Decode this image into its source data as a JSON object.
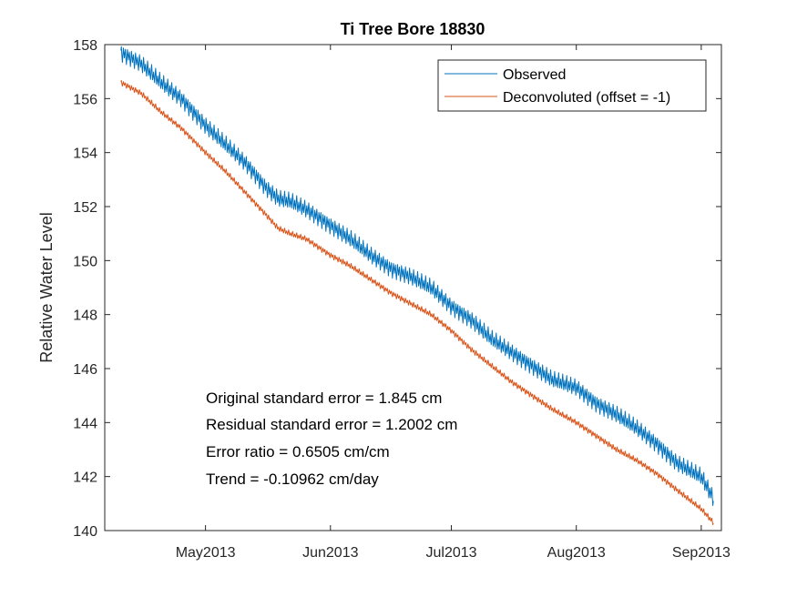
{
  "chart_data": {
    "type": "line",
    "title": "Ti Tree Bore 18830",
    "ylabel": "Relative Water Level",
    "xlabel": "",
    "ylim": [
      140,
      158
    ],
    "xlim": [
      "2013-04-06",
      "2013-09-06"
    ],
    "y_ticks": [
      140,
      142,
      144,
      146,
      148,
      150,
      152,
      154,
      156,
      158
    ],
    "x_ticks": [
      {
        "date": "2013-05-01",
        "label": "May2013"
      },
      {
        "date": "2013-06-01",
        "label": "Jun2013"
      },
      {
        "date": "2013-07-01",
        "label": "Jul2013"
      },
      {
        "date": "2013-08-01",
        "label": "Aug2013"
      },
      {
        "date": "2013-09-01",
        "label": "Sep2013"
      }
    ],
    "legend_position": "top-right",
    "series": [
      {
        "name": "Observed",
        "color": "#0072BD",
        "x": [
          "2013-04-10",
          "2013-04-15",
          "2013-04-20",
          "2013-04-25",
          "2013-05-01",
          "2013-05-06",
          "2013-05-11",
          "2013-05-16",
          "2013-05-19",
          "2013-05-22",
          "2013-05-26",
          "2013-06-01",
          "2013-06-06",
          "2013-06-11",
          "2013-06-16",
          "2013-06-21",
          "2013-06-26",
          "2013-07-01",
          "2013-07-06",
          "2013-07-11",
          "2013-07-16",
          "2013-07-21",
          "2013-07-26",
          "2013-08-01",
          "2013-08-06",
          "2013-08-11",
          "2013-08-16",
          "2013-08-21",
          "2013-08-26",
          "2013-09-01",
          "2013-09-04"
        ],
        "y": [
          157.7,
          157.3,
          156.6,
          156.0,
          155.0,
          154.3,
          153.6,
          152.7,
          152.3,
          152.2,
          151.9,
          151.3,
          150.8,
          150.2,
          149.7,
          149.4,
          149.0,
          148.3,
          147.8,
          147.1,
          146.6,
          146.1,
          145.6,
          145.3,
          144.7,
          144.3,
          143.8,
          143.2,
          142.5,
          142.0,
          141.2
        ],
        "amplitude": 0.3
      },
      {
        "name": "Deconvoluted (offset = -1)",
        "color": "#D95319",
        "x": [
          "2013-04-10",
          "2013-04-15",
          "2013-04-20",
          "2013-04-25",
          "2013-05-01",
          "2013-05-06",
          "2013-05-11",
          "2013-05-16",
          "2013-05-19",
          "2013-05-22",
          "2013-05-26",
          "2013-06-01",
          "2013-06-06",
          "2013-06-11",
          "2013-06-16",
          "2013-06-21",
          "2013-06-26",
          "2013-07-01",
          "2013-07-06",
          "2013-07-11",
          "2013-07-16",
          "2013-07-21",
          "2013-07-26",
          "2013-08-01",
          "2013-08-06",
          "2013-08-11",
          "2013-08-16",
          "2013-08-21",
          "2013-08-26",
          "2013-09-01",
          "2013-09-04"
        ],
        "y": [
          156.6,
          156.2,
          155.5,
          154.9,
          154.0,
          153.3,
          152.5,
          151.7,
          151.2,
          151.0,
          150.8,
          150.2,
          149.8,
          149.3,
          148.8,
          148.4,
          148.0,
          147.4,
          146.7,
          146.1,
          145.5,
          145.0,
          144.5,
          144.0,
          143.5,
          143.0,
          142.6,
          142.1,
          141.5,
          140.8,
          140.3
        ],
        "amplitude": 0.1
      }
    ],
    "annotations": [
      "Original standard error = 1.845 cm",
      "Residual standard error = 1.2002 cm",
      "Error ratio = 0.6505 cm/cm",
      "Trend = -0.10962 cm/day"
    ]
  }
}
